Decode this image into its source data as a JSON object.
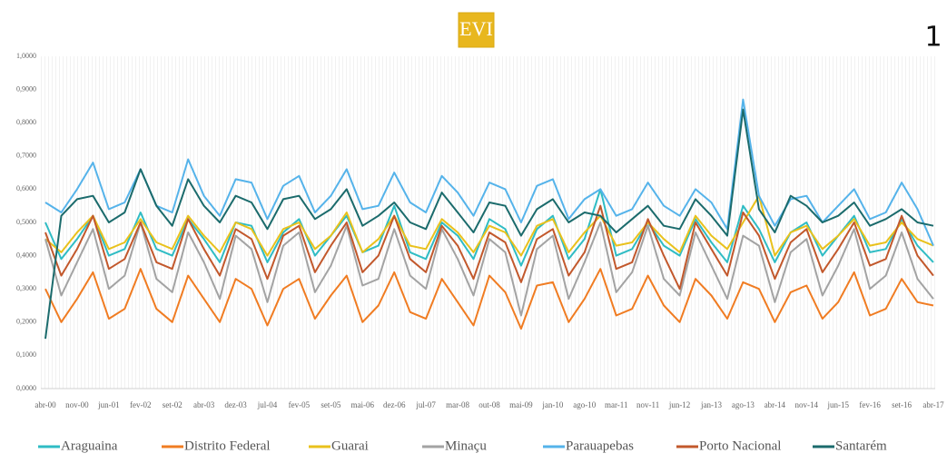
{
  "chart_data": {
    "type": "line",
    "title": "EVI",
    "panel_label": "1",
    "categories": [
      "abr-00",
      null,
      "nov-00",
      null,
      "jun-01",
      null,
      "fev-02",
      null,
      "set-02",
      null,
      "abr-03",
      null,
      "dez-03",
      null,
      "jul-04",
      null,
      "fev-05",
      null,
      "set-05",
      null,
      "mai-06",
      null,
      "dez-06",
      null,
      "jul-07",
      null,
      "mar-08",
      null,
      "out-08",
      null,
      "mai-09",
      null,
      "jan-10",
      null,
      "ago-10",
      null,
      "mar-11",
      null,
      "nov-11",
      null,
      "jun-12",
      null,
      "jan-13",
      null,
      "ago-13",
      null,
      "abr-14",
      null,
      "nov-14",
      null,
      "jun-15",
      null,
      "fev-16",
      null,
      "set-16",
      null,
      "abr-17"
    ],
    "ylim": [
      0,
      1
    ],
    "yticks": [
      {
        "value": 0,
        "label": "0,0000"
      },
      {
        "value": 0.1,
        "label": "0,1000"
      },
      {
        "value": 0.2,
        "label": "0,2000"
      },
      {
        "value": 0.3,
        "label": "0,3000"
      },
      {
        "value": 0.4,
        "label": "0,4000"
      },
      {
        "value": 0.5,
        "label": "0,5000"
      },
      {
        "value": 0.6,
        "label": "0,6000"
      },
      {
        "value": 0.7,
        "label": "0,7000"
      },
      {
        "value": 0.8,
        "label": "0,8000"
      },
      {
        "value": 0.9,
        "label": "0,9000"
      },
      {
        "value": 1,
        "label": "1,0000"
      }
    ],
    "grid": false,
    "series": [
      {
        "name": "Araguaina",
        "color": "#2fbcc4",
        "values": [
          0.5,
          0.39,
          0.45,
          0.52,
          0.4,
          0.42,
          0.53,
          0.42,
          0.4,
          0.51,
          0.45,
          0.38,
          0.5,
          0.49,
          0.38,
          0.47,
          0.51,
          0.4,
          0.46,
          0.52,
          0.41,
          0.43,
          0.55,
          0.41,
          0.39,
          0.5,
          0.46,
          0.39,
          0.51,
          0.48,
          0.37,
          0.48,
          0.52,
          0.39,
          0.45,
          0.6,
          0.4,
          0.42,
          0.5,
          0.43,
          0.4,
          0.51,
          0.44,
          0.38,
          0.55,
          0.48,
          0.38,
          0.47,
          0.5,
          0.4,
          0.46,
          0.52,
          0.41,
          0.42,
          0.51,
          0.43,
          0.38
        ]
      },
      {
        "name": "Distrito Federal",
        "color": "#f07c22",
        "values": [
          0.3,
          0.2,
          0.27,
          0.35,
          0.21,
          0.24,
          0.36,
          0.24,
          0.2,
          0.34,
          0.27,
          0.2,
          0.33,
          0.3,
          0.19,
          0.3,
          0.33,
          0.21,
          0.28,
          0.34,
          0.2,
          0.25,
          0.35,
          0.23,
          0.21,
          0.33,
          0.26,
          0.19,
          0.34,
          0.29,
          0.18,
          0.31,
          0.32,
          0.2,
          0.27,
          0.36,
          0.22,
          0.24,
          0.34,
          0.25,
          0.2,
          0.33,
          0.28,
          0.21,
          0.32,
          0.3,
          0.2,
          0.29,
          0.31,
          0.21,
          0.26,
          0.35,
          0.22,
          0.24,
          0.33,
          0.26,
          0.25
        ]
      },
      {
        "name": "Guarai",
        "color": "#e9c11c",
        "values": [
          0.45,
          0.41,
          0.47,
          0.52,
          0.42,
          0.44,
          0.51,
          0.44,
          0.42,
          0.52,
          0.46,
          0.41,
          0.5,
          0.48,
          0.4,
          0.48,
          0.5,
          0.42,
          0.46,
          0.53,
          0.41,
          0.45,
          0.52,
          0.43,
          0.42,
          0.51,
          0.47,
          0.41,
          0.49,
          0.47,
          0.4,
          0.49,
          0.51,
          0.41,
          0.47,
          0.52,
          0.43,
          0.44,
          0.5,
          0.45,
          0.41,
          0.52,
          0.46,
          0.42,
          0.5,
          0.58,
          0.4,
          0.47,
          0.49,
          0.42,
          0.46,
          0.51,
          0.43,
          0.44,
          0.5,
          0.45,
          0.43
        ]
      },
      {
        "name": "Minaçu",
        "color": "#a3a3a3",
        "values": [
          0.45,
          0.28,
          0.38,
          0.48,
          0.3,
          0.34,
          0.5,
          0.33,
          0.29,
          0.47,
          0.38,
          0.27,
          0.46,
          0.42,
          0.26,
          0.43,
          0.47,
          0.29,
          0.37,
          0.49,
          0.31,
          0.33,
          0.48,
          0.34,
          0.3,
          0.48,
          0.39,
          0.28,
          0.45,
          0.41,
          0.22,
          0.42,
          0.46,
          0.27,
          0.38,
          0.5,
          0.29,
          0.35,
          0.49,
          0.33,
          0.28,
          0.47,
          0.37,
          0.27,
          0.46,
          0.43,
          0.26,
          0.41,
          0.45,
          0.28,
          0.37,
          0.48,
          0.3,
          0.34,
          0.47,
          0.33,
          0.27
        ]
      },
      {
        "name": "Parauapebas",
        "color": "#55b3ea",
        "values": [
          0.56,
          0.53,
          0.6,
          0.68,
          0.54,
          0.56,
          0.66,
          0.55,
          0.53,
          0.69,
          0.58,
          0.52,
          0.63,
          0.62,
          0.51,
          0.61,
          0.64,
          0.53,
          0.58,
          0.66,
          0.54,
          0.55,
          0.65,
          0.56,
          0.53,
          0.64,
          0.59,
          0.52,
          0.62,
          0.6,
          0.5,
          0.61,
          0.63,
          0.51,
          0.57,
          0.6,
          0.52,
          0.54,
          0.62,
          0.55,
          0.52,
          0.6,
          0.56,
          0.48,
          0.87,
          0.58,
          0.49,
          0.57,
          0.58,
          0.5,
          0.55,
          0.6,
          0.51,
          0.53,
          0.62,
          0.54,
          0.43
        ]
      },
      {
        "name": "Porto Nacional",
        "color": "#c2582c",
        "values": [
          0.47,
          0.34,
          0.42,
          0.52,
          0.36,
          0.39,
          0.5,
          0.38,
          0.36,
          0.51,
          0.42,
          0.34,
          0.48,
          0.45,
          0.33,
          0.46,
          0.49,
          0.35,
          0.43,
          0.5,
          0.35,
          0.4,
          0.52,
          0.39,
          0.35,
          0.49,
          0.43,
          0.33,
          0.47,
          0.44,
          0.32,
          0.45,
          0.48,
          0.34,
          0.41,
          0.55,
          0.36,
          0.38,
          0.51,
          0.4,
          0.3,
          0.5,
          0.42,
          0.34,
          0.53,
          0.46,
          0.33,
          0.44,
          0.48,
          0.35,
          0.42,
          0.5,
          0.37,
          0.39,
          0.52,
          0.4,
          0.34
        ]
      },
      {
        "name": "Santarém",
        "color": "#1b6b6c",
        "values": [
          0.15,
          0.52,
          0.57,
          0.58,
          0.5,
          0.53,
          0.66,
          0.55,
          0.49,
          0.63,
          0.55,
          0.5,
          0.58,
          0.56,
          0.48,
          0.57,
          0.58,
          0.51,
          0.54,
          0.6,
          0.49,
          0.52,
          0.56,
          0.5,
          0.48,
          0.59,
          0.53,
          0.47,
          0.56,
          0.55,
          0.46,
          0.54,
          0.57,
          0.5,
          0.53,
          0.52,
          0.47,
          0.51,
          0.55,
          0.49,
          0.48,
          0.57,
          0.52,
          0.46,
          0.84,
          0.54,
          0.47,
          0.58,
          0.55,
          0.5,
          0.52,
          0.56,
          0.49,
          0.51,
          0.54,
          0.5,
          0.49
        ]
      }
    ]
  }
}
